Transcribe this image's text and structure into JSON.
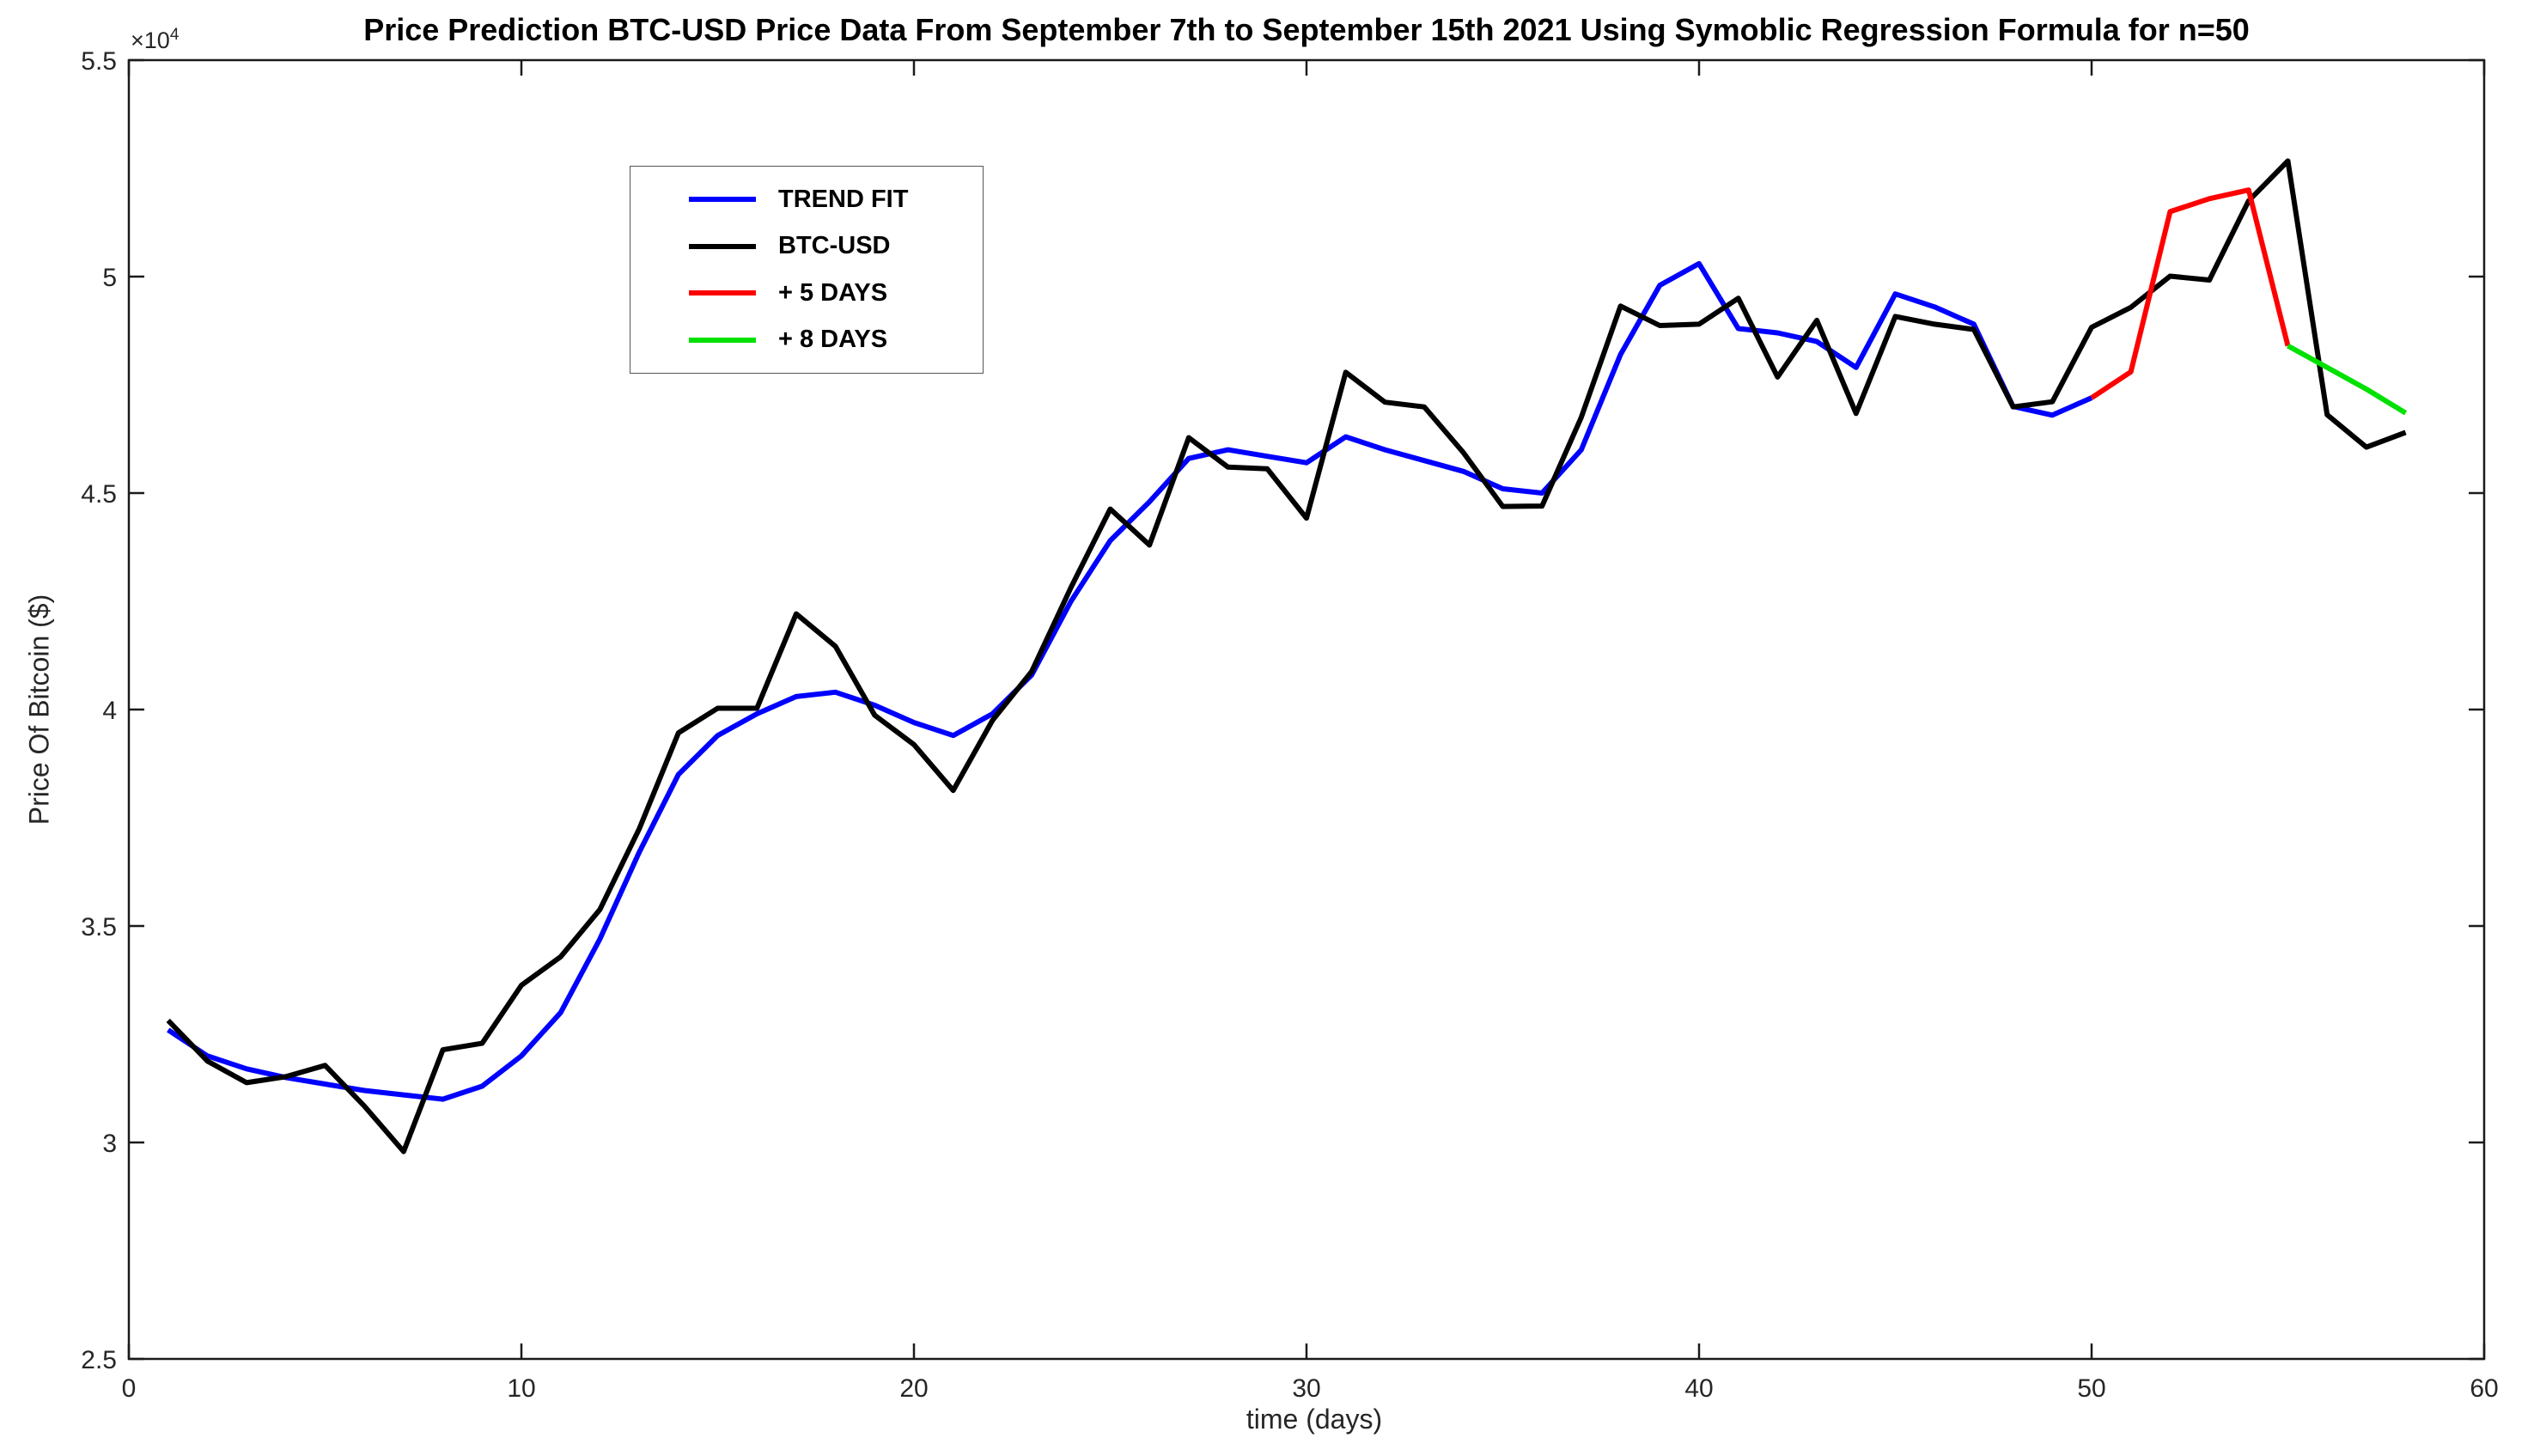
{
  "figure": {
    "title": "Price Prediction BTC-USD Price Data From September 7th to September 15th 2021 Using Symoblic Regression Formula for n=50",
    "xlabel": "time (days)",
    "ylabel": "Price Of Bitcoin ($)",
    "y_multiplier_base": "×10",
    "y_multiplier_exp": "4"
  },
  "legend": {
    "items": [
      {
        "label": "TREND FIT",
        "color": "#0000ff"
      },
      {
        "label": "BTC-USD",
        "color": "#000000"
      },
      {
        "label": "+ 5 DAYS",
        "color": "#ff0000"
      },
      {
        "label": "+ 8 DAYS",
        "color": "#00e100"
      }
    ]
  },
  "chart_data": {
    "type": "line",
    "title": "Price Prediction BTC-USD Price Data From September 7th to September 15th 2021 Using Symoblic Regression Formula for n=50",
    "xlabel": "time (days)",
    "ylabel": "Price Of Bitcoin ($)",
    "x_range": [
      0,
      60
    ],
    "y_range_display": [
      2.5,
      5.5
    ],
    "y_unit_multiplier": 10000,
    "x_ticks": [
      0,
      10,
      20,
      30,
      40,
      50,
      60
    ],
    "y_ticks": [
      2.5,
      3.0,
      3.5,
      4.0,
      4.5,
      5.0,
      5.5
    ],
    "y_tick_labels": [
      "2.5",
      "3",
      "3.5",
      "4",
      "4.5",
      "5",
      "5.5"
    ],
    "grid": false,
    "legend_position": "upper left inside",
    "axis_color": "#1a1a1a",
    "series": [
      {
        "name": "TREND FIT",
        "color": "#0000ff",
        "x": [
          1,
          2,
          3,
          4,
          5,
          6,
          7,
          8,
          9,
          10,
          11,
          12,
          13,
          14,
          15,
          16,
          17,
          18,
          19,
          20,
          21,
          22,
          23,
          24,
          25,
          26,
          27,
          28,
          29,
          30,
          31,
          32,
          33,
          34,
          35,
          36,
          37,
          38,
          39,
          40,
          41,
          42,
          43,
          44,
          45,
          46,
          47,
          48,
          49,
          50
        ],
        "values": [
          3.26,
          3.2,
          3.17,
          3.15,
          3.135,
          3.12,
          3.11,
          3.1,
          3.13,
          3.2,
          3.3,
          3.47,
          3.67,
          3.85,
          3.94,
          3.99,
          4.03,
          4.04,
          4.01,
          3.97,
          3.94,
          3.99,
          4.08,
          4.25,
          4.39,
          4.48,
          4.58,
          4.6,
          4.585,
          4.57,
          4.63,
          4.6,
          4.575,
          4.55,
          4.51,
          4.5,
          4.6,
          4.82,
          4.98,
          5.03,
          4.88,
          4.87,
          4.85,
          4.79,
          4.96,
          4.93,
          4.89,
          4.7,
          4.68,
          4.72
        ]
      },
      {
        "name": "BTC-USD",
        "color": "#000000",
        "x": [
          1,
          2,
          3,
          4,
          5,
          6,
          7,
          8,
          9,
          10,
          11,
          12,
          13,
          14,
          15,
          16,
          17,
          18,
          19,
          20,
          21,
          22,
          23,
          24,
          25,
          26,
          27,
          28,
          29,
          30,
          31,
          32,
          33,
          34,
          35,
          36,
          37,
          38,
          39,
          40,
          41,
          42,
          43,
          44,
          45,
          46,
          47,
          48,
          49,
          50,
          51,
          52,
          53,
          54,
          55,
          56,
          57,
          58
        ],
        "values": [
          3.282,
          3.188,
          3.138,
          3.152,
          3.178,
          3.084,
          2.979,
          3.214,
          3.229,
          3.363,
          3.429,
          3.538,
          3.724,
          3.946,
          4.003,
          4.003,
          4.221,
          4.146,
          3.987,
          3.919,
          3.813,
          3.975,
          4.088,
          4.282,
          4.463,
          4.38,
          4.628,
          4.56,
          4.556,
          4.442,
          4.779,
          4.71,
          4.699,
          4.593,
          4.469,
          4.47,
          4.675,
          4.932,
          4.887,
          4.89,
          4.95,
          4.768,
          4.899,
          4.684,
          4.908,
          4.89,
          4.878,
          4.699,
          4.711,
          4.883,
          4.929,
          5.001,
          4.992,
          5.175,
          5.267,
          4.681,
          4.606,
          4.64
        ]
      },
      {
        "name": "+ 5 DAYS",
        "color": "#ff0000",
        "x": [
          50,
          51,
          52,
          53,
          54,
          55
        ],
        "values": [
          4.72,
          4.78,
          5.15,
          5.18,
          5.2,
          4.84
        ]
      },
      {
        "name": "+ 8 DAYS",
        "color": "#00e100",
        "x": [
          55,
          56,
          57,
          58
        ],
        "values": [
          4.84,
          4.79,
          4.74,
          4.685
        ]
      }
    ]
  }
}
